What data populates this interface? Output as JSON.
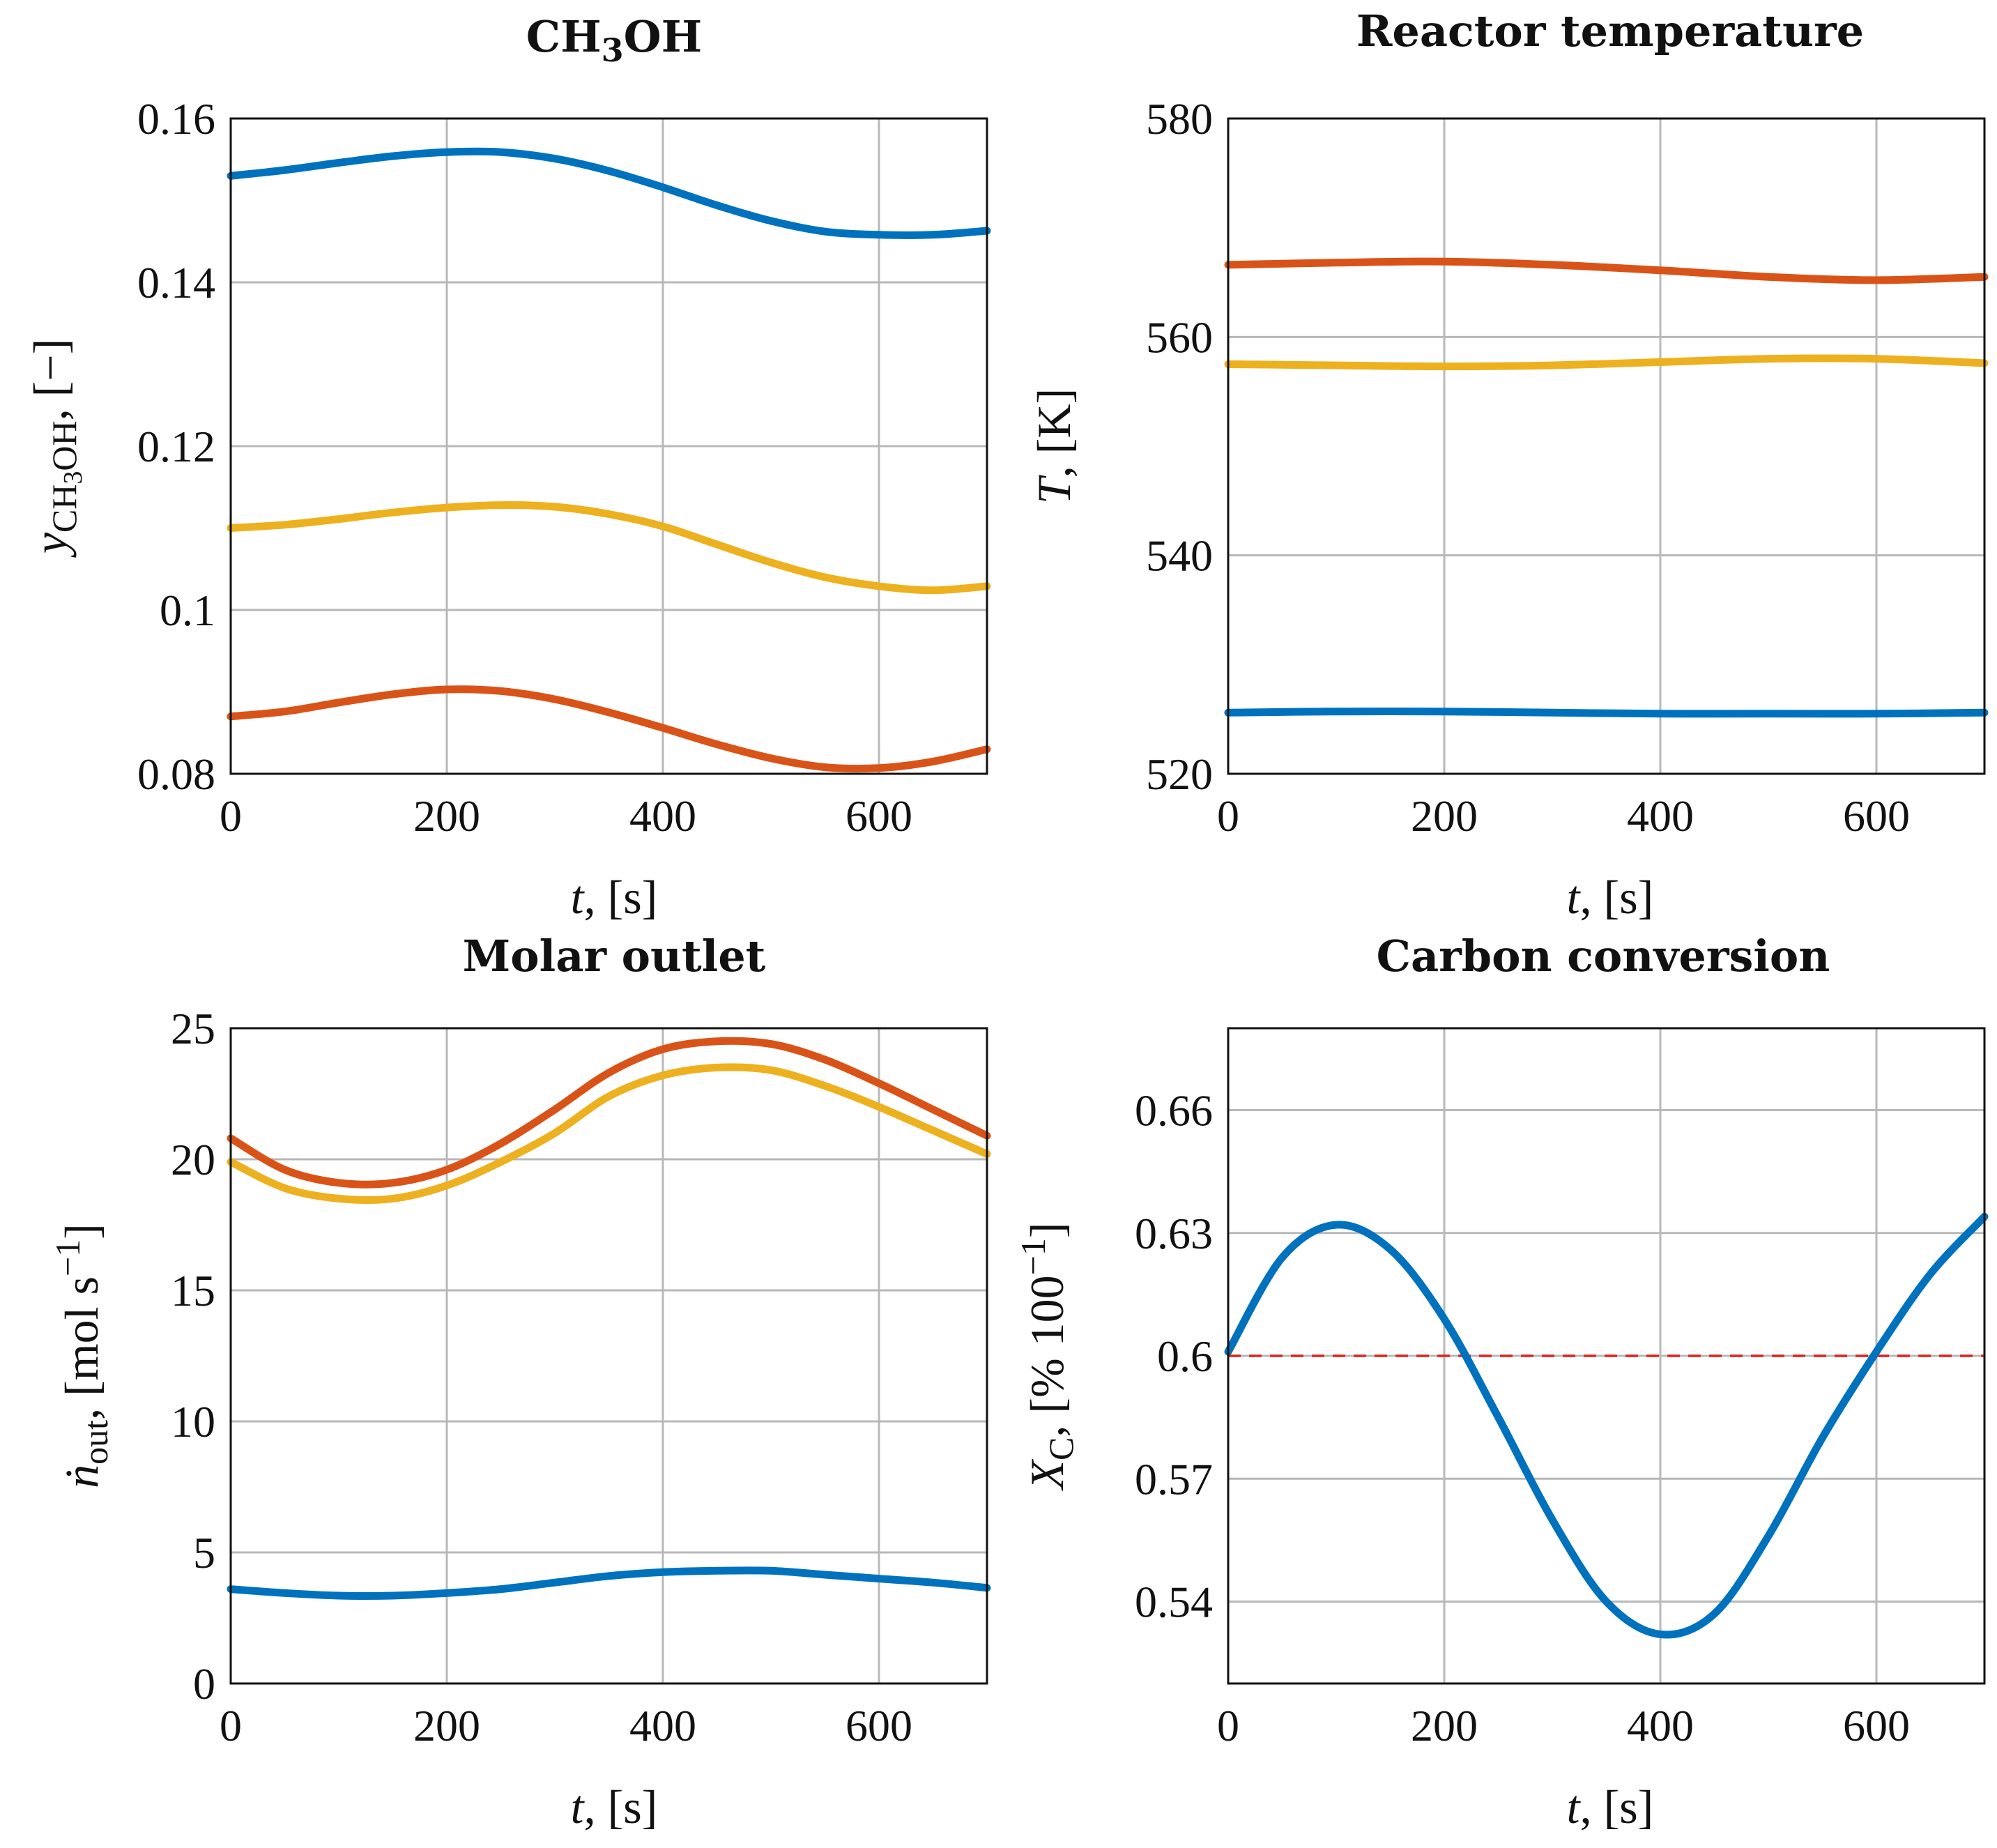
{
  "colors": {
    "blue": "#0072BD",
    "orange": "#D95319",
    "yellow": "#EDB120",
    "ref": "#E0211B"
  },
  "chart_data": [
    {
      "type": "line",
      "title": "CH3OH",
      "title_main": "CH",
      "title_sub": "3",
      "title_tail": "OH",
      "xlabel": "t, [s]",
      "xlabel_var": "t",
      "xlabel_rest": ", [s]",
      "ylabel": "yCH3OH, [−]",
      "ylabel_var": "y",
      "ylabel_sub": "CH",
      "ylabel_sub2": "3",
      "ylabel_sub3": "OH",
      "ylabel_rest": ", [−]",
      "xlim": [
        0,
        700
      ],
      "ylim": [
        0.08,
        0.16
      ],
      "xticks": [
        0,
        200,
        400,
        600
      ],
      "xtick_labels": [
        "0",
        "200",
        "400",
        "600"
      ],
      "yticks": [
        0.08,
        0.1,
        0.12,
        0.14,
        0.16
      ],
      "ytick_labels": [
        "0.08",
        "0.1",
        "0.12",
        "0.14",
        "0.16"
      ],
      "x": [
        0,
        50,
        100,
        150,
        200,
        250,
        300,
        350,
        400,
        450,
        500,
        550,
        600,
        650,
        700
      ],
      "series": [
        {
          "color": "blue",
          "values": [
            0.153,
            0.1537,
            0.1546,
            0.1554,
            0.1559,
            0.1559,
            0.1551,
            0.1536,
            0.1516,
            0.1494,
            0.1475,
            0.1462,
            0.1458,
            0.1458,
            0.1463
          ]
        },
        {
          "color": "yellow",
          "values": [
            0.11,
            0.1104,
            0.1111,
            0.1119,
            0.1125,
            0.1128,
            0.1126,
            0.1117,
            0.1102,
            0.108,
            0.1058,
            0.104,
            0.1029,
            0.1024,
            0.1029
          ]
        },
        {
          "color": "orange",
          "values": [
            0.087,
            0.0876,
            0.0887,
            0.0897,
            0.0903,
            0.0901,
            0.0891,
            0.0875,
            0.0856,
            0.0836,
            0.0819,
            0.0808,
            0.0807,
            0.0815,
            0.083
          ]
        }
      ]
    },
    {
      "type": "line",
      "title": "Reactor temperature",
      "xlabel": "t, [s]",
      "xlabel_var": "t",
      "xlabel_rest": ", [s]",
      "ylabel": "T, [K]",
      "ylabel_var": "T",
      "ylabel_rest": ", [K]",
      "xlim": [
        0,
        700
      ],
      "ylim": [
        520,
        580
      ],
      "xticks": [
        0,
        200,
        400,
        600
      ],
      "xtick_labels": [
        "0",
        "200",
        "400",
        "600"
      ],
      "yticks": [
        520,
        540,
        560,
        580
      ],
      "ytick_labels": [
        "520",
        "540",
        "560",
        "580"
      ],
      "x": [
        0,
        100,
        200,
        300,
        400,
        500,
        600,
        700
      ],
      "series": [
        {
          "color": "orange",
          "values": [
            566.6,
            566.8,
            566.9,
            566.6,
            566.1,
            565.5,
            565.2,
            565.5
          ]
        },
        {
          "color": "yellow",
          "values": [
            557.5,
            557.4,
            557.3,
            557.4,
            557.7,
            558.0,
            558.0,
            557.6
          ]
        },
        {
          "color": "blue",
          "values": [
            525.6,
            525.7,
            525.7,
            525.6,
            525.5,
            525.5,
            525.5,
            525.6
          ]
        }
      ]
    },
    {
      "type": "line",
      "title": "Molar outlet",
      "xlabel": "t, [s]",
      "xlabel_var": "t",
      "xlabel_rest": ", [s]",
      "ylabel": "ṅout, [mol s−1]",
      "ylabel_var": "ṅ",
      "ylabel_sub": "out",
      "ylabel_rest": ", [mol s",
      "ylabel_sup": "−1",
      "ylabel_end": "]",
      "xlim": [
        0,
        700
      ],
      "ylim": [
        0,
        25
      ],
      "xticks": [
        0,
        200,
        400,
        600
      ],
      "xtick_labels": [
        "0",
        "200",
        "400",
        "600"
      ],
      "yticks": [
        0,
        5,
        10,
        15,
        20,
        25
      ],
      "ytick_labels": [
        "0",
        "5",
        "10",
        "15",
        "20",
        "25"
      ],
      "x": [
        0,
        50,
        100,
        150,
        200,
        250,
        300,
        350,
        400,
        450,
        500,
        550,
        600,
        650,
        700
      ],
      "series": [
        {
          "color": "orange",
          "values": [
            20.8,
            19.6,
            19.1,
            19.1,
            19.6,
            20.6,
            21.9,
            23.3,
            24.2,
            24.5,
            24.4,
            23.8,
            22.9,
            21.9,
            20.9
          ]
        },
        {
          "color": "yellow",
          "values": [
            19.9,
            18.9,
            18.5,
            18.5,
            19.0,
            19.9,
            21.0,
            22.4,
            23.2,
            23.5,
            23.4,
            22.8,
            22.0,
            21.1,
            20.2
          ]
        },
        {
          "color": "blue",
          "values": [
            3.6,
            3.45,
            3.35,
            3.35,
            3.45,
            3.6,
            3.85,
            4.1,
            4.25,
            4.3,
            4.3,
            4.15,
            4.0,
            3.85,
            3.65
          ]
        }
      ]
    },
    {
      "type": "line",
      "title": "Carbon conversion",
      "xlabel": "t, [s]",
      "xlabel_var": "t",
      "xlabel_rest": ", [s]",
      "ylabel": "XC, [% 100−1]",
      "ylabel_var": "X",
      "ylabel_sub": "C",
      "ylabel_rest": ", [% 100",
      "ylabel_sup": "−1",
      "ylabel_end": "]",
      "xlim": [
        0,
        700
      ],
      "ylim": [
        0.52,
        0.68
      ],
      "xticks": [
        0,
        200,
        400,
        600
      ],
      "xtick_labels": [
        "0",
        "200",
        "400",
        "600"
      ],
      "yticks": [
        0.54,
        0.57,
        0.6,
        0.63,
        0.66
      ],
      "ytick_labels": [
        "0.54",
        "0.57",
        "0.6",
        "0.63",
        "0.66"
      ],
      "reference_line": 0.6,
      "x": [
        0,
        50,
        100,
        150,
        200,
        250,
        300,
        350,
        400,
        450,
        500,
        550,
        600,
        650,
        700
      ],
      "series": [
        {
          "color": "blue",
          "values": [
            0.601,
            0.624,
            0.632,
            0.626,
            0.609,
            0.585,
            0.56,
            0.54,
            0.532,
            0.537,
            0.556,
            0.58,
            0.601,
            0.62,
            0.634
          ]
        }
      ]
    }
  ]
}
